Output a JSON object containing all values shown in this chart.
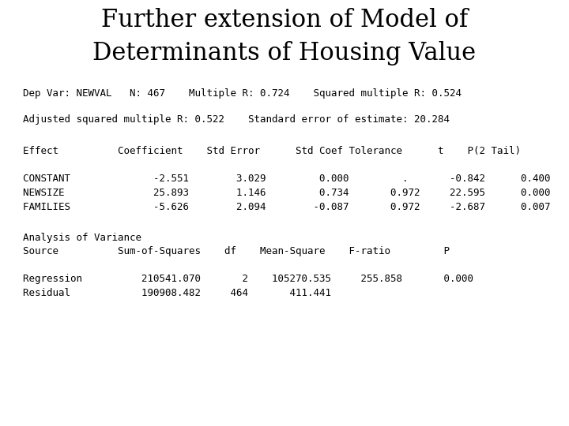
{
  "title_line1": "Further extension of Model of",
  "title_line2": "Determinants of Housing Value",
  "title_fontsize": 22,
  "title_font": "DejaVu Serif",
  "mono_font": "DejaVu Sans Mono",
  "mono_fontsize": 9,
  "bg_color": "#ffffff",
  "text_color": "#000000",
  "line1": "Dep Var: NEWVAL   N: 467    Multiple R: 0.724    Squared multiple R: 0.524",
  "line2": "Adjusted squared multiple R: 0.522    Standard error of estimate: 20.284",
  "header": "Effect          Coefficient    Std Error      Std Coef Tolerance      t    P(2 Tail)",
  "rows": [
    "CONSTANT              -2.551        3.029         0.000         .       -0.842      0.400",
    "NEWSIZE               25.893        1.146         0.734       0.972     22.595      0.000",
    "FAMILIES              -5.626        2.094        -0.087       0.972     -2.687      0.007"
  ],
  "anova_label": "Analysis of Variance",
  "anova_header": "Source          Sum-of-Squares    df    Mean-Square    F-ratio         P",
  "anova_rows": [
    "Regression          210541.070       2    105270.535     255.858       0.000",
    "Residual            190908.482     464       411.441"
  ]
}
